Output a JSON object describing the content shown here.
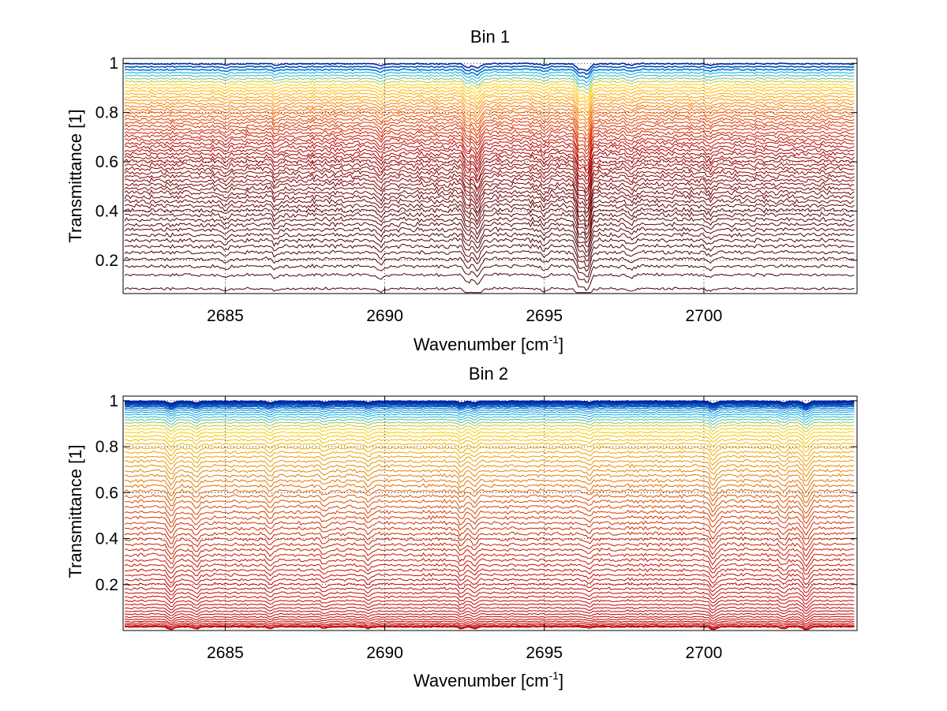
{
  "chart_data": [
    {
      "type": "line",
      "title": "Bin 1",
      "xlabel_main": "Wavenumber [cm",
      "xlabel_sup": "-1",
      "xlabel_end": "]",
      "ylabel": "Transmittance [1]",
      "xlim": [
        2681.8,
        2704.8
      ],
      "ylim": [
        0.065,
        1.02
      ],
      "xticks": [
        2685,
        2690,
        2695,
        2700
      ],
      "xtick_labels": [
        "2685",
        "2690",
        "2695",
        "2700"
      ],
      "yticks": [
        0.2,
        0.4,
        0.6,
        0.8,
        1.0
      ],
      "ytick_labels": [
        "0.2",
        "0.4",
        "0.6",
        "0.8",
        "1"
      ],
      "grid": true,
      "series_count": 55,
      "series_levels_range": [
        0.085,
        0.998
      ],
      "series_colors_low_to_high": [
        "#4a0000",
        "#7d0000",
        "#b00000",
        "#d42a00",
        "#f06000",
        "#ffa000",
        "#ffd000",
        "#00b0f0",
        "#0020a0"
      ],
      "absorption_features": [
        {
          "center": 2685.0,
          "depth": 0.35
        },
        {
          "center": 2686.6,
          "depth": 0.35
        },
        {
          "center": 2689.9,
          "depth": 0.4
        },
        {
          "center": 2692.6,
          "depth": 0.8
        },
        {
          "center": 2692.9,
          "depth": 1.0
        },
        {
          "center": 2695.0,
          "depth": 0.35
        },
        {
          "center": 2696.1,
          "depth": 1.3
        },
        {
          "center": 2696.35,
          "depth": 1.6
        },
        {
          "center": 2697.7,
          "depth": 0.3
        },
        {
          "center": 2700.2,
          "depth": 0.3
        }
      ]
    },
    {
      "type": "line",
      "title": "Bin 2",
      "xlabel_main": "Wavenumber [cm",
      "xlabel_sup": "-1",
      "xlabel_end": "]",
      "ylabel": "Transmittance [1]",
      "xlim": [
        2681.8,
        2704.8
      ],
      "ylim": [
        0.0,
        1.02
      ],
      "xticks": [
        2685,
        2690,
        2695,
        2700
      ],
      "xtick_labels": [
        "2685",
        "2690",
        "2695",
        "2700"
      ],
      "yticks": [
        0.2,
        0.4,
        0.6,
        0.8,
        1.0
      ],
      "ytick_labels": [
        "0.2",
        "0.4",
        "0.6",
        "0.8",
        "1"
      ],
      "grid": true,
      "series_count": 65,
      "series_levels_range": [
        0.015,
        0.998
      ],
      "series_colors_low_to_high": [
        "#c00000",
        "#c82000",
        "#d84000",
        "#e07000",
        "#e89000",
        "#f0b000",
        "#f8d000",
        "#00b0f0",
        "#0020a0"
      ],
      "absorption_features": [
        {
          "center": 2683.3,
          "depth": 0.9
        },
        {
          "center": 2684.1,
          "depth": 0.7
        },
        {
          "center": 2686.4,
          "depth": 0.5
        },
        {
          "center": 2688.1,
          "depth": 0.4
        },
        {
          "center": 2689.5,
          "depth": 0.5
        },
        {
          "center": 2692.4,
          "depth": 0.6
        },
        {
          "center": 2692.8,
          "depth": 0.5
        },
        {
          "center": 2696.4,
          "depth": 0.35
        },
        {
          "center": 2700.3,
          "depth": 0.9
        },
        {
          "center": 2702.5,
          "depth": 0.5
        },
        {
          "center": 2703.2,
          "depth": 1.1
        }
      ]
    }
  ]
}
